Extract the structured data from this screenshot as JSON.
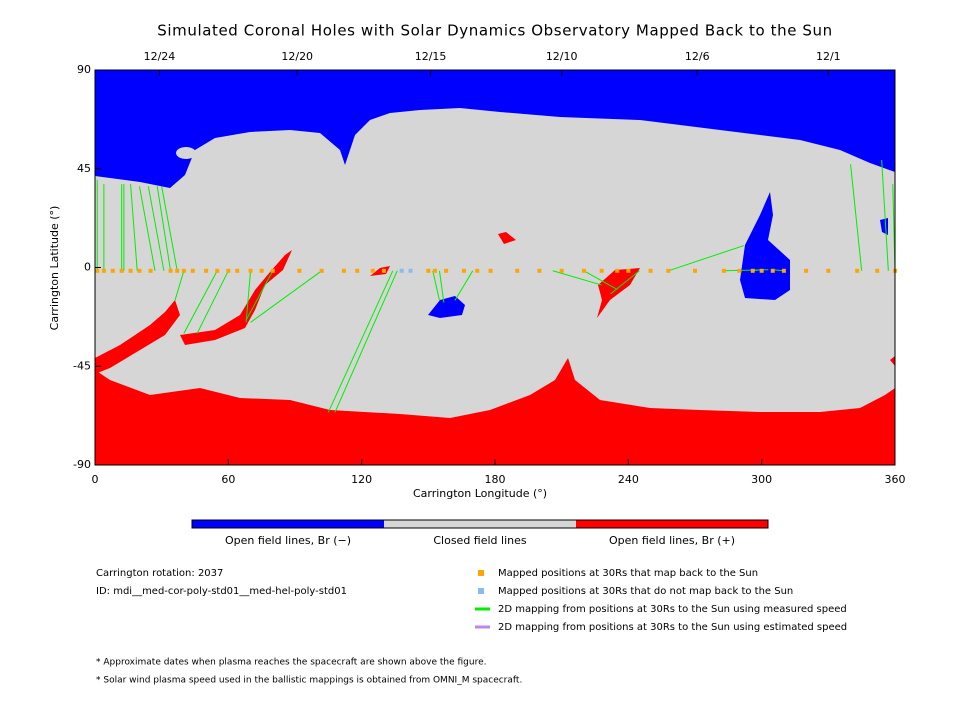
{
  "chart_data": {
    "type": "coronal-map",
    "title": "Simulated Coronal Holes with Solar Dynamics Observatory Mapped Back to the Sun",
    "x_label": "Carrington Longitude (°)",
    "y_label": "Carrington Latitude (°)",
    "xlim": [
      0,
      360
    ],
    "ylim": [
      -90,
      90
    ],
    "xticks": [
      0,
      60,
      120,
      180,
      240,
      300,
      360
    ],
    "yticks": [
      -90,
      -45,
      0,
      45,
      90
    ],
    "x2ticks": [
      {
        "value": 29,
        "label": "12/24"
      },
      {
        "value": 91,
        "label": "12/20"
      },
      {
        "value": 151,
        "label": "12/15"
      },
      {
        "value": 210,
        "label": "12/10"
      },
      {
        "value": 271,
        "label": "12/6"
      },
      {
        "value": 330,
        "label": "12/1"
      }
    ],
    "colorbar": [
      {
        "label": "Open field lines, Br (−)",
        "color": "#0000ff"
      },
      {
        "label": "Closed field lines",
        "color": "#d6d6d6"
      },
      {
        "label": "Open field lines, Br (+)",
        "color": "#ff0000"
      }
    ],
    "info": [
      "Carrington rotation: 2037",
      "ID: mdi__med-cor-poly-std01__med-hel-poly-std01"
    ],
    "series": [
      {
        "name": "Mapped positions at 30Rs that map back to the Sun",
        "color": "#ffa500",
        "x": [
          1,
          4,
          8,
          12,
          16,
          20,
          25,
          34,
          37,
          40,
          44,
          50,
          55,
          60,
          64,
          70,
          75,
          80,
          92,
          102,
          112,
          118,
          125,
          130,
          150,
          153,
          158,
          166,
          172,
          178,
          190,
          200,
          210,
          220,
          228,
          235,
          240,
          250,
          258,
          270,
          283,
          290,
          296,
          300,
          305,
          310,
          320,
          330,
          343,
          352,
          360
        ],
        "y": [
          -1.5,
          -1.5,
          -1.5,
          -1.5,
          -1.5,
          -1.5,
          -1.5,
          -1.5,
          -1.5,
          -1.5,
          -1.5,
          -1.5,
          -1.5,
          -1.5,
          -1.5,
          -1.5,
          -1.5,
          -1.5,
          -1.5,
          -1.5,
          -1.5,
          -1.5,
          -1.5,
          -1.5,
          -1.5,
          -1.5,
          -1.5,
          -1.5,
          -1.5,
          -1.5,
          -1.5,
          -1.5,
          -1.5,
          -1.5,
          -1.5,
          -1.5,
          -1.5,
          -1.5,
          -1.5,
          -1.5,
          -1.5,
          -1.5,
          -1.5,
          -1.5,
          -1.5,
          -1.5,
          -1.5,
          -1.5,
          -1.5,
          -1.5,
          -1.5
        ]
      },
      {
        "name": "Mapped positions at 30Rs that do not map back to the Sun",
        "color": "#88bbee",
        "x": [
          138,
          142
        ],
        "y": [
          -1.5,
          -1.5
        ]
      }
    ],
    "mappings": [
      {
        "name": "2D mapping from positions at 30Rs to the Sun using measured speed",
        "color": "#00ee00",
        "x0": [
          1,
          4,
          12,
          13,
          19,
          27,
          31,
          34,
          37,
          40,
          55,
          60,
          70,
          80,
          102,
          134,
          136,
          152,
          155,
          170,
          206,
          220,
          245,
          258,
          283,
          296,
          310,
          345,
          357,
          360
        ],
        "y0": [
          -1.5,
          -1.5,
          -1.5,
          -1.5,
          -1.5,
          -1.5,
          -1.5,
          -1.5,
          -1.5,
          -1.5,
          -1.5,
          -1.5,
          -1.5,
          -1.5,
          -1.5,
          -1.5,
          -1.5,
          -1.5,
          -1.5,
          -1.5,
          -1.5,
          -1.5,
          -1.5,
          -1.5,
          -1.5,
          -1.5,
          -1.5,
          -1.5,
          -1.5,
          -1.5
        ],
        "x1": [
          1,
          4,
          12,
          13,
          16,
          20,
          24,
          28,
          30,
          36,
          40,
          46,
          68,
          68,
          70,
          105,
          108,
          155,
          157,
          162,
          228,
          235,
          232,
          292,
          303,
          300,
          305,
          340,
          354,
          359
        ],
        "y1": [
          40,
          38,
          38,
          38,
          38,
          37,
          37,
          37,
          37,
          -15,
          -30,
          -30,
          -25,
          -24,
          -25,
          -66,
          -66,
          -15,
          -16,
          -15,
          -8,
          -10,
          -12,
          10,
          -1,
          -1,
          -1,
          47,
          49,
          38
        ]
      },
      {
        "name": "2D mapping from positions at 30Rs to the Sun using estimated speed",
        "color": "#bb88ee",
        "x0": [],
        "y0": [],
        "x1": [],
        "y1": []
      }
    ],
    "footnotes": [
      "* Approximate dates when plasma reaches the spacecraft are shown above the figure.",
      "* Solar wind plasma speed used in the ballistic mappings is obtained from OMNI_M spacecraft."
    ]
  }
}
